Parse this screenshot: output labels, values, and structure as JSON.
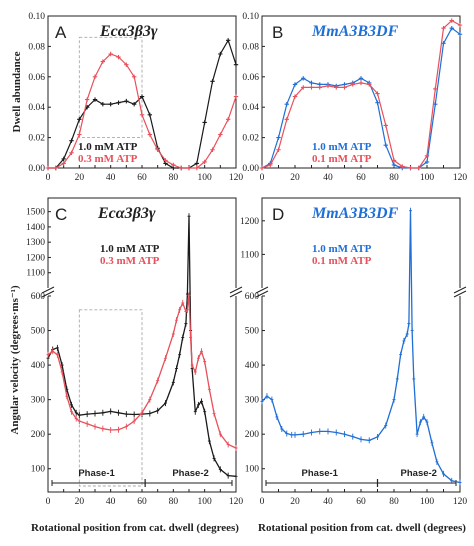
{
  "figure": {
    "xlabel": "Rotational position from cat. dwell (degrees)"
  },
  "chart_data": [
    {
      "panel": "A",
      "type": "line",
      "title": "Ecα3β3γ",
      "ylabel": "Dwell abundance",
      "xlim": [
        0,
        120
      ],
      "ylim": [
        0,
        0.1
      ],
      "xticks": [
        0,
        10,
        20,
        30,
        40,
        50,
        60,
        70,
        80,
        90,
        100,
        110,
        120
      ],
      "yticks": [
        0,
        0.02,
        0.04,
        0.06,
        0.08,
        0.1
      ],
      "ytick_labels": [
        "0.00",
        "0.02",
        "0.04",
        "0.06",
        "0.08",
        "0.10"
      ],
      "series": [
        {
          "name": "1.0 mM ATP",
          "color": "#1a1a1a",
          "x": [
            0,
            5,
            10,
            15,
            20,
            25,
            30,
            35,
            40,
            45,
            50,
            55,
            60,
            65,
            70,
            75,
            80,
            85,
            90,
            95,
            100,
            105,
            110,
            115,
            120
          ],
          "y": [
            0,
            0,
            0.006,
            0.018,
            0.032,
            0.04,
            0.045,
            0.042,
            0.042,
            0.043,
            0.044,
            0.042,
            0.047,
            0.035,
            0.013,
            0.003,
            0,
            0,
            0,
            0.003,
            0.03,
            0.057,
            0.075,
            0.084,
            0.068
          ]
        },
        {
          "name": "0.3 mM ATP",
          "color": "#e8505b",
          "x": [
            0,
            5,
            10,
            15,
            20,
            25,
            30,
            35,
            40,
            45,
            50,
            55,
            60,
            65,
            70,
            75,
            80,
            85,
            90,
            95,
            100,
            105,
            110,
            115,
            120
          ],
          "y": [
            0,
            0,
            0.003,
            0.01,
            0.022,
            0.045,
            0.06,
            0.07,
            0.075,
            0.073,
            0.068,
            0.06,
            0.035,
            0.022,
            0.012,
            0.005,
            0.002,
            0,
            0,
            0,
            0.004,
            0.012,
            0.022,
            0.032,
            0.047
          ]
        }
      ],
      "box": {
        "x": [
          20,
          60
        ],
        "y": [
          0.02,
          0.086
        ]
      }
    },
    {
      "panel": "B",
      "type": "line",
      "title": "MmA3B3DF",
      "ylabel": "",
      "xlim": [
        0,
        120
      ],
      "ylim": [
        0,
        0.1
      ],
      "xticks": [
        0,
        10,
        20,
        30,
        40,
        50,
        60,
        70,
        80,
        90,
        100,
        110,
        120
      ],
      "yticks": [
        0,
        0.02,
        0.04,
        0.06,
        0.08,
        0.1
      ],
      "ytick_labels": [
        "0.00",
        "0.02",
        "0.04",
        "0.06",
        "0.08",
        "0.10"
      ],
      "series": [
        {
          "name": "1.0 mM ATP",
          "color": "#1f6fd6",
          "x": [
            0,
            5,
            10,
            15,
            20,
            25,
            30,
            35,
            40,
            45,
            50,
            55,
            60,
            65,
            70,
            75,
            80,
            85,
            90,
            95,
            100,
            105,
            110,
            115,
            120
          ],
          "y": [
            0,
            0.003,
            0.02,
            0.042,
            0.055,
            0.059,
            0.056,
            0.055,
            0.055,
            0.054,
            0.055,
            0.056,
            0.059,
            0.056,
            0.043,
            0.015,
            0.002,
            0,
            0,
            0,
            0.004,
            0.042,
            0.082,
            0.092,
            0.088
          ]
        },
        {
          "name": "0.1 mM ATP",
          "color": "#e8505b",
          "x": [
            0,
            5,
            10,
            15,
            20,
            25,
            30,
            35,
            40,
            45,
            50,
            55,
            60,
            65,
            70,
            75,
            80,
            85,
            90,
            95,
            100,
            105,
            110,
            115,
            120
          ],
          "y": [
            0,
            0.002,
            0.012,
            0.032,
            0.047,
            0.053,
            0.053,
            0.053,
            0.054,
            0.053,
            0.053,
            0.055,
            0.056,
            0.055,
            0.049,
            0.028,
            0.005,
            0.001,
            0,
            0,
            0.008,
            0.052,
            0.092,
            0.097,
            0.094
          ]
        }
      ]
    },
    {
      "panel": "C",
      "type": "line",
      "title": "Ecα3β3γ",
      "ylabel": "Angular velocity (degrees·ms⁻¹)",
      "xlim": [
        0,
        120
      ],
      "ylim_lower": [
        50,
        600
      ],
      "ylim_upper": [
        1000,
        1550
      ],
      "axis_break_between": [
        600,
        1000
      ],
      "xticks": [
        0,
        10,
        20,
        30,
        40,
        50,
        60,
        70,
        80,
        90,
        100,
        110,
        120
      ],
      "yticks_lower": [
        100,
        200,
        300,
        400,
        500,
        600
      ],
      "yticks_upper": [
        1100,
        1200,
        1300,
        1400,
        1500
      ],
      "series": [
        {
          "name": "1.0 mM ATP",
          "color": "#1a1a1a",
          "x": [
            0,
            3,
            6,
            9,
            12,
            15,
            18,
            20,
            25,
            30,
            35,
            40,
            45,
            50,
            55,
            60,
            65,
            70,
            75,
            80,
            82,
            84,
            86,
            88,
            89,
            90,
            91,
            92,
            94,
            96,
            98,
            100,
            103,
            106,
            110,
            115,
            120
          ],
          "y": [
            420,
            445,
            450,
            400,
            330,
            285,
            262,
            255,
            258,
            260,
            262,
            266,
            262,
            258,
            257,
            258,
            260,
            268,
            290,
            350,
            390,
            430,
            480,
            520,
            700,
            1470,
            500,
            390,
            265,
            285,
            295,
            265,
            180,
            130,
            98,
            80,
            78
          ]
        },
        {
          "name": "0.3 mM ATP",
          "color": "#e8505b",
          "x": [
            0,
            3,
            6,
            9,
            12,
            15,
            18,
            20,
            25,
            30,
            35,
            40,
            45,
            50,
            55,
            60,
            65,
            70,
            75,
            80,
            82,
            84,
            86,
            88,
            89,
            90,
            91,
            92,
            94,
            96,
            98,
            100,
            103,
            106,
            110,
            115,
            120
          ],
          "y": [
            430,
            440,
            430,
            380,
            310,
            265,
            245,
            238,
            230,
            222,
            216,
            212,
            213,
            222,
            238,
            262,
            300,
            355,
            420,
            490,
            530,
            560,
            580,
            555,
            560,
            640,
            480,
            400,
            380,
            420,
            440,
            410,
            330,
            260,
            200,
            170,
            160
          ]
        }
      ],
      "box": {
        "x": [
          20,
          60
        ],
        "y": [
          50,
          560
        ]
      },
      "phases": [
        {
          "label": "Phase-1",
          "x": [
            0,
            62
          ]
        },
        {
          "label": "Phase-2",
          "x": [
            62,
            120
          ]
        }
      ]
    },
    {
      "panel": "D",
      "type": "line",
      "title": "MmA3B3DF",
      "ylabel": "",
      "xlim": [
        0,
        120
      ],
      "ylim_lower": [
        50,
        600
      ],
      "ylim_upper": [
        1000,
        1250
      ],
      "axis_break_between": [
        600,
        1000
      ],
      "xticks": [
        0,
        10,
        20,
        30,
        40,
        50,
        60,
        70,
        80,
        90,
        100,
        110,
        120
      ],
      "yticks_lower": [
        100,
        200,
        300,
        400,
        500,
        600
      ],
      "yticks_upper": [
        1100,
        1200
      ],
      "legend_only": [
        {
          "name": "1.0 mM ATP",
          "color": "#1f6fd6"
        },
        {
          "name": "0.1 mM ATP",
          "color": "#e8505b"
        }
      ],
      "series": [
        {
          "name": "1.0 mM ATP",
          "color": "#1f6fd6",
          "x": [
            0,
            3,
            6,
            9,
            12,
            15,
            18,
            20,
            25,
            30,
            35,
            40,
            45,
            50,
            55,
            60,
            65,
            70,
            75,
            80,
            82,
            84,
            86,
            88,
            89,
            90,
            91,
            92,
            94,
            96,
            98,
            100,
            103,
            106,
            110,
            115,
            120
          ],
          "y": [
            295,
            310,
            300,
            250,
            215,
            202,
            198,
            198,
            200,
            205,
            208,
            208,
            205,
            200,
            193,
            185,
            182,
            192,
            225,
            300,
            360,
            430,
            470,
            490,
            520,
            1230,
            500,
            360,
            200,
            235,
            250,
            235,
            175,
            120,
            85,
            65,
            60
          ]
        }
      ],
      "phases": [
        {
          "label": "Phase-1",
          "x": [
            0,
            70
          ]
        },
        {
          "label": "Phase-2",
          "x": [
            70,
            120
          ]
        }
      ]
    }
  ]
}
